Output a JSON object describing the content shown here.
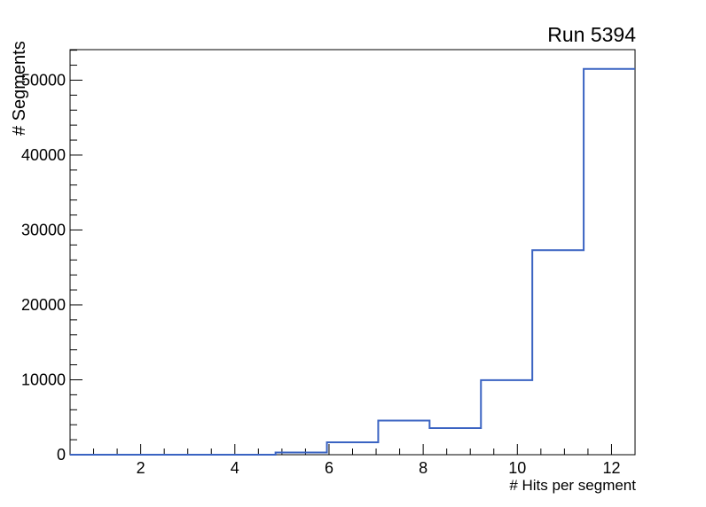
{
  "chart_data": {
    "type": "bar",
    "style": "step-histogram-outline",
    "title": "Run 5394",
    "xlabel": "# Hits per segment",
    "ylabel": "# Segments",
    "bin_edges": [
      0.5,
      1.591,
      2.682,
      3.773,
      4.864,
      5.955,
      7.045,
      8.136,
      9.227,
      10.318,
      11.409,
      12.5
    ],
    "counts": [
      0,
      0,
      0,
      0,
      300,
      1650,
      4550,
      3550,
      9950,
      27300,
      51500
    ],
    "xlim": [
      0.5,
      12.5
    ],
    "ylim": [
      0,
      54075
    ],
    "x_major_ticks": [
      2,
      4,
      6,
      8,
      10,
      12
    ],
    "x_major_tick_labels": [
      "2",
      "4",
      "6",
      "8",
      "10",
      "12"
    ],
    "x_minor_tick_step": 0.5,
    "y_major_ticks": [
      0,
      10000,
      20000,
      30000,
      40000,
      50000
    ],
    "y_major_tick_labels": [
      "0",
      "10000",
      "20000",
      "30000",
      "40000",
      "50000"
    ],
    "y_minor_tick_step": 2000,
    "grid": false,
    "legend": null,
    "line_color": "#3a63c2",
    "frame_color": "#000000",
    "background_color": "#ffffff"
  }
}
